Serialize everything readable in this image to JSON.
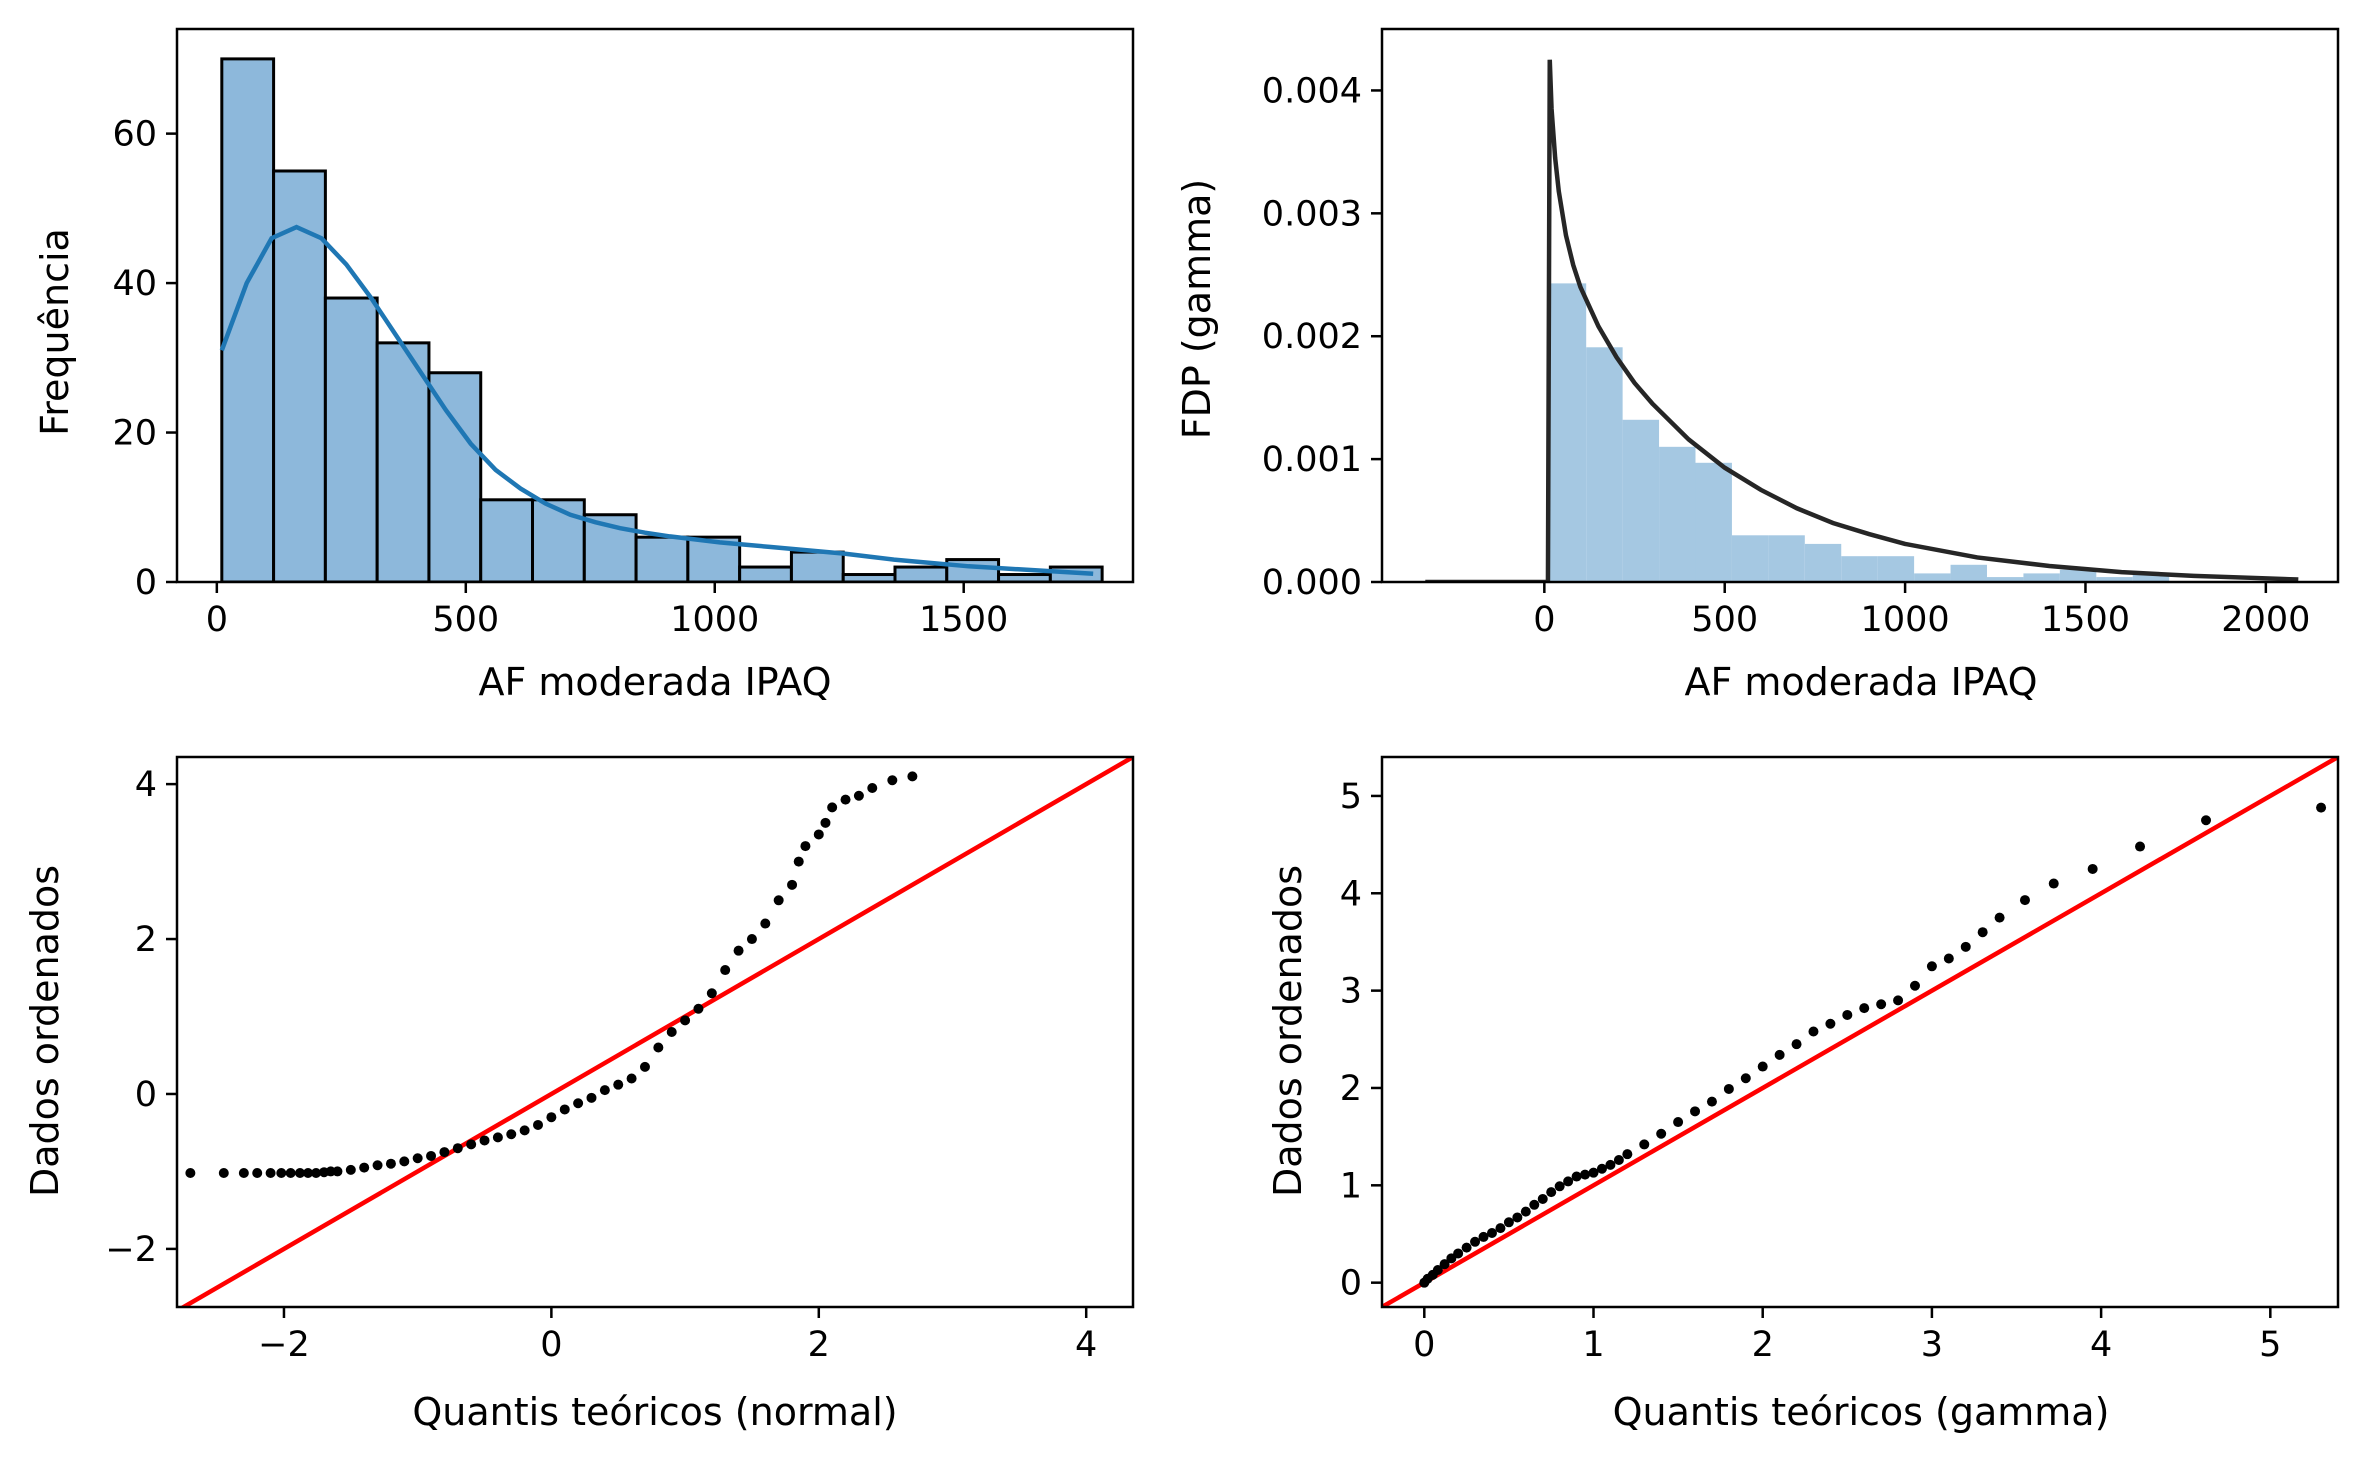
{
  "chart_data": [
    {
      "type": "bar",
      "subtype": "histogram_with_kde",
      "xlabel": "AF moderada IPAQ",
      "ylabel": "Frequência",
      "xlim": [
        -80,
        1840
      ],
      "ylim": [
        0,
        74
      ],
      "xticks": [
        "0",
        "500",
        "1000",
        "1500"
      ],
      "xtick_values": [
        0,
        500,
        1000,
        1500
      ],
      "yticks": [
        "0",
        "20",
        "40",
        "60"
      ],
      "ytick_values": [
        0,
        20,
        40,
        60
      ],
      "bin_edges": [
        10,
        114,
        218,
        322,
        426,
        530,
        634,
        738,
        842,
        946,
        1050,
        1154,
        1258,
        1362,
        1466,
        1570,
        1674,
        1778
      ],
      "values": [
        70,
        55,
        38,
        32,
        28,
        11,
        11,
        9,
        6,
        6,
        2,
        4,
        1,
        2,
        3,
        1,
        2
      ],
      "bar_color": "#8db8db",
      "kde_color": "#1f77b4",
      "kde": {
        "name": "KDE",
        "x": [
          10,
          60,
          110,
          160,
          210,
          260,
          310,
          360,
          410,
          460,
          510,
          560,
          610,
          660,
          710,
          760,
          810,
          860,
          910,
          960,
          1010,
          1060,
          1110,
          1160,
          1210,
          1260,
          1310,
          1360,
          1410,
          1460,
          1510,
          1560,
          1610,
          1660,
          1710,
          1760
        ],
        "y": [
          31,
          40,
          46,
          47.5,
          46,
          42.5,
          38,
          33,
          28,
          23,
          18.5,
          15,
          12.5,
          10.5,
          9,
          8,
          7.2,
          6.6,
          6.1,
          5.7,
          5.3,
          5.0,
          4.7,
          4.4,
          4.1,
          3.8,
          3.4,
          3.0,
          2.7,
          2.4,
          2.1,
          1.9,
          1.7,
          1.5,
          1.3,
          1.1
        ]
      }
    },
    {
      "type": "bar",
      "subtype": "density_histogram_with_gamma_pdf",
      "xlabel": "AF moderada IPAQ",
      "ylabel": "FDP (gamma)",
      "xlim": [
        -450,
        2200
      ],
      "ylim": [
        0,
        0.0045
      ],
      "xticks": [
        "0",
        "500",
        "1000",
        "1500",
        "2000"
      ],
      "xtick_values": [
        0,
        500,
        1000,
        1500,
        2000
      ],
      "yticks": [
        "0.000",
        "0.001",
        "0.002",
        "0.003",
        "0.004"
      ],
      "ytick_values": [
        0,
        0.001,
        0.002,
        0.003,
        0.004
      ],
      "bin_edges": [
        15,
        116,
        217,
        318,
        419,
        520,
        621,
        722,
        823,
        924,
        1025,
        1126,
        1227,
        1328,
        1429,
        1530,
        1631,
        1732
      ],
      "values": [
        0.00243,
        0.00191,
        0.00132,
        0.0011,
        0.00097,
        0.00038,
        0.00038,
        0.00031,
        0.00021,
        0.00021,
        7e-05,
        0.00014,
        4e-05,
        7e-05,
        0.0001,
        4e-05,
        7e-05
      ],
      "bar_color": "#a5c8e2",
      "pdf_color": "#262626",
      "pdf": {
        "name": "gamma",
        "x": [
          -330,
          0,
          10,
          15,
          20,
          30,
          40,
          60,
          80,
          100,
          150,
          200,
          250,
          300,
          400,
          500,
          600,
          700,
          800,
          900,
          1000,
          1200,
          1400,
          1600,
          1800,
          2000,
          2090
        ],
        "y": [
          0,
          0,
          0,
          0.00425,
          0.00385,
          0.00345,
          0.00318,
          0.00282,
          0.00258,
          0.0024,
          0.00208,
          0.00183,
          0.00162,
          0.00145,
          0.00116,
          0.00093,
          0.00075,
          0.0006,
          0.00048,
          0.00039,
          0.00031,
          0.0002,
          0.00013,
          8e-05,
          5e-05,
          3e-05,
          2e-05
        ]
      }
    },
    {
      "type": "scatter",
      "subtype": "qq_plot",
      "xlabel": "Quantis teóricos (normal)",
      "ylabel": "Dados ordenados",
      "xlim": [
        -2.8,
        4.35
      ],
      "ylim": [
        -2.75,
        4.35
      ],
      "xticks": [
        "−2",
        "0",
        "2",
        "4"
      ],
      "xtick_values": [
        -2,
        0,
        2,
        4
      ],
      "yticks": [
        "−2",
        "0",
        "2",
        "4"
      ],
      "ytick_values": [
        -2,
        0,
        2,
        4
      ],
      "point_color": "#000000",
      "line_color": "#ff0000",
      "reference_line": {
        "slope": 1,
        "intercept": 0
      },
      "points": {
        "x": [
          -2.7,
          -2.45,
          -2.3,
          -2.2,
          -2.1,
          -2.02,
          -1.95,
          -1.88,
          -1.82,
          -1.76,
          -1.7,
          -1.65,
          -1.6,
          -1.5,
          -1.4,
          -1.3,
          -1.2,
          -1.1,
          -1.0,
          -0.9,
          -0.8,
          -0.7,
          -0.6,
          -0.5,
          -0.4,
          -0.3,
          -0.2,
          -0.1,
          0.0,
          0.1,
          0.2,
          0.3,
          0.4,
          0.5,
          0.6,
          0.7,
          0.8,
          0.9,
          1.0,
          1.1,
          1.2,
          1.3,
          1.4,
          1.5,
          1.6,
          1.7,
          1.8,
          1.85,
          1.9,
          2.0,
          2.05,
          2.1,
          2.2,
          2.3,
          2.4,
          2.55,
          2.7
        ],
        "y": [
          -1.02,
          -1.02,
          -1.02,
          -1.02,
          -1.02,
          -1.02,
          -1.02,
          -1.02,
          -1.02,
          -1.02,
          -1.01,
          -1.0,
          -1.0,
          -0.98,
          -0.95,
          -0.92,
          -0.9,
          -0.87,
          -0.83,
          -0.8,
          -0.75,
          -0.7,
          -0.65,
          -0.6,
          -0.56,
          -0.52,
          -0.47,
          -0.4,
          -0.3,
          -0.2,
          -0.12,
          -0.05,
          0.05,
          0.12,
          0.2,
          0.35,
          0.6,
          0.8,
          0.95,
          1.1,
          1.3,
          1.6,
          1.85,
          2.0,
          2.2,
          2.5,
          2.7,
          3.0,
          3.2,
          3.35,
          3.5,
          3.7,
          3.8,
          3.85,
          3.95,
          4.05,
          4.1
        ]
      }
    },
    {
      "type": "scatter",
      "subtype": "qq_plot",
      "xlabel": "Quantis teóricos (gamma)",
      "ylabel": "Dados ordenados",
      "xlim": [
        -0.25,
        5.4
      ],
      "ylim": [
        -0.25,
        5.4
      ],
      "xticks": [
        "0",
        "1",
        "2",
        "3",
        "4",
        "5"
      ],
      "xtick_values": [
        0,
        1,
        2,
        3,
        4,
        5
      ],
      "yticks": [
        "0",
        "1",
        "2",
        "3",
        "4",
        "5"
      ],
      "ytick_values": [
        0,
        1,
        2,
        3,
        4,
        5
      ],
      "point_color": "#000000",
      "line_color": "#ff0000",
      "reference_line": {
        "slope": 1,
        "intercept": 0
      },
      "points": {
        "x": [
          0.0,
          0.02,
          0.05,
          0.08,
          0.12,
          0.16,
          0.2,
          0.25,
          0.3,
          0.35,
          0.4,
          0.45,
          0.5,
          0.55,
          0.6,
          0.65,
          0.7,
          0.75,
          0.8,
          0.85,
          0.9,
          0.95,
          1.0,
          1.05,
          1.1,
          1.15,
          1.2,
          1.3,
          1.4,
          1.5,
          1.6,
          1.7,
          1.8,
          1.9,
          2.0,
          2.1,
          2.2,
          2.3,
          2.4,
          2.5,
          2.6,
          2.7,
          2.8,
          2.9,
          3.0,
          3.1,
          3.2,
          3.3,
          3.4,
          3.55,
          3.72,
          3.95,
          4.23,
          4.62,
          5.3
        ],
        "y": [
          0.0,
          0.04,
          0.08,
          0.13,
          0.19,
          0.25,
          0.3,
          0.36,
          0.42,
          0.47,
          0.51,
          0.56,
          0.62,
          0.67,
          0.73,
          0.8,
          0.86,
          0.93,
          0.99,
          1.04,
          1.09,
          1.11,
          1.13,
          1.17,
          1.21,
          1.26,
          1.32,
          1.42,
          1.53,
          1.65,
          1.76,
          1.86,
          1.99,
          2.1,
          2.22,
          2.34,
          2.45,
          2.58,
          2.66,
          2.75,
          2.82,
          2.86,
          2.9,
          3.05,
          3.25,
          3.33,
          3.45,
          3.6,
          3.75,
          3.93,
          4.1,
          4.25,
          4.48,
          4.75,
          4.88
        ]
      }
    }
  ]
}
